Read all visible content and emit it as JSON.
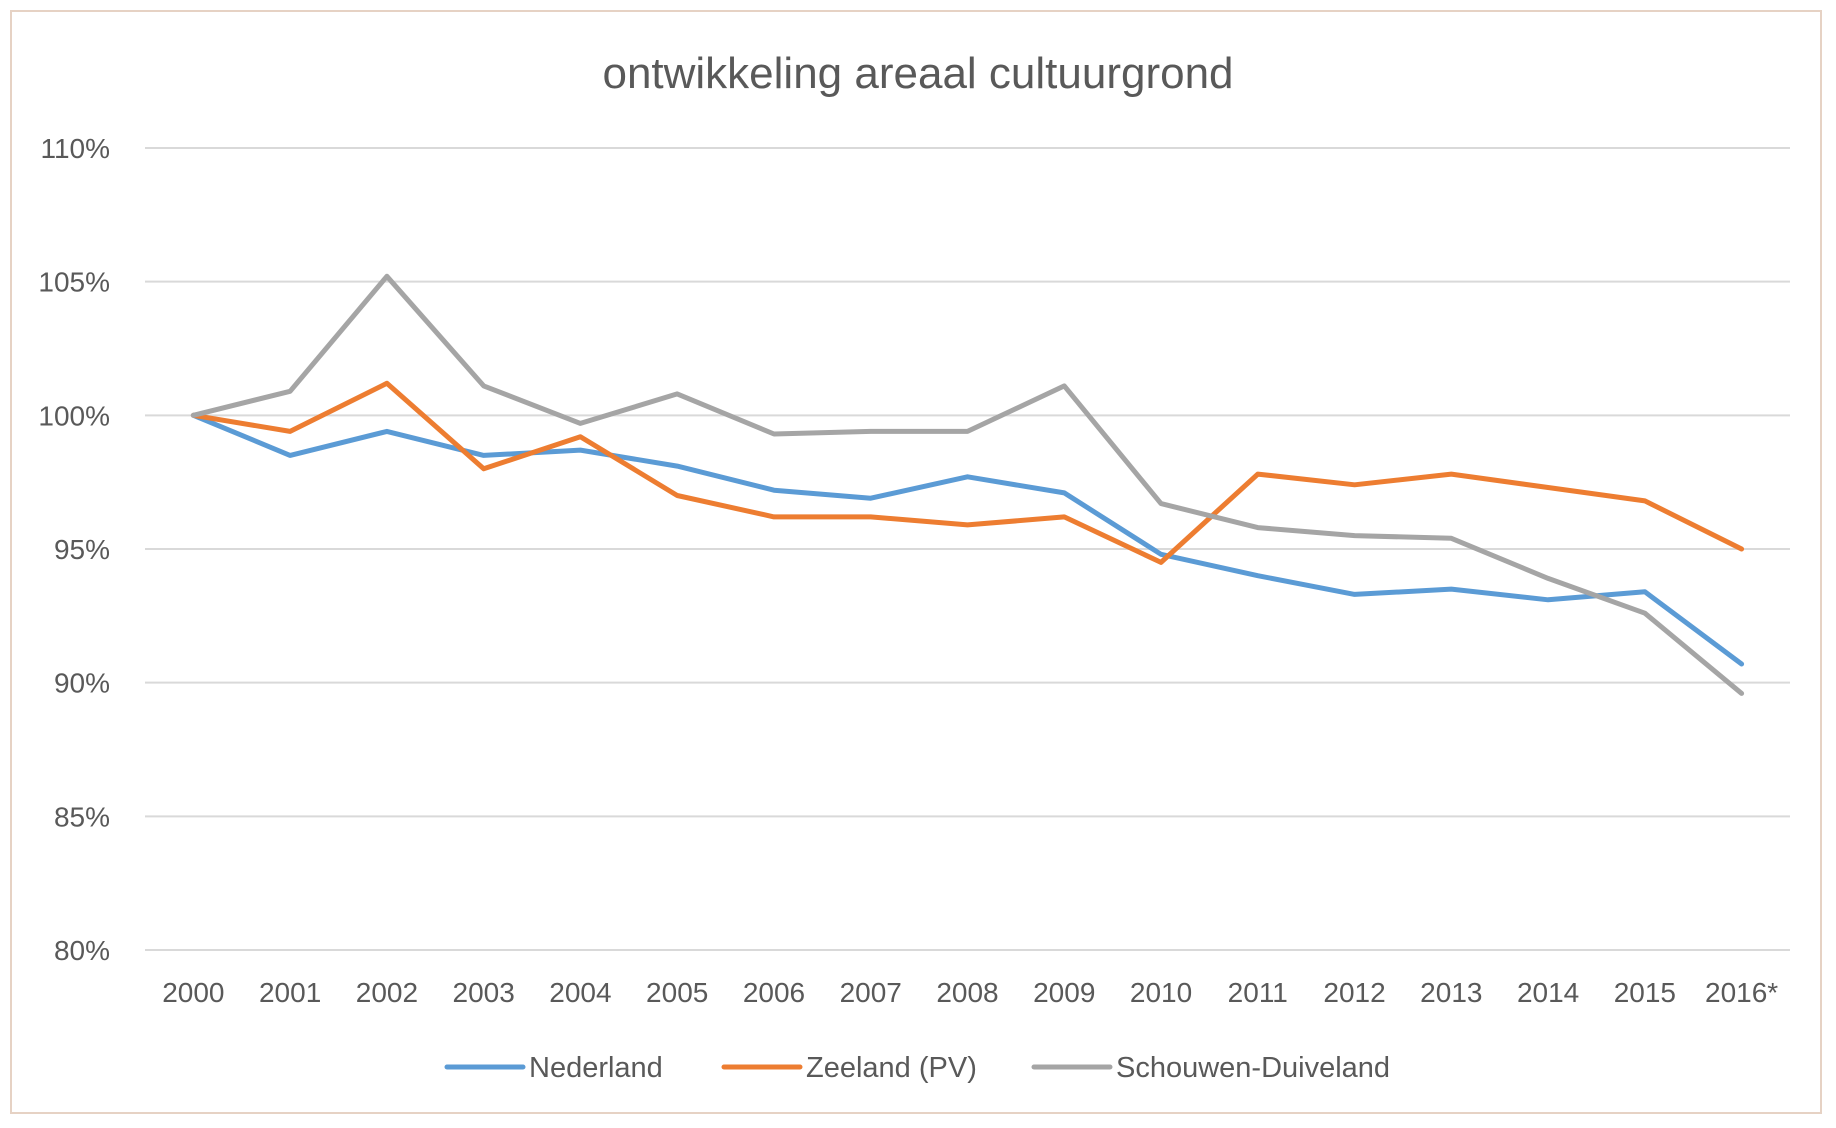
{
  "chart_data": {
    "type": "line",
    "title": "ontwikkeling  areaal cultuurgrond",
    "xlabel": "",
    "ylabel": "",
    "categories": [
      "2000",
      "2001",
      "2002",
      "2003",
      "2004",
      "2005",
      "2006",
      "2007",
      "2008",
      "2009",
      "2010",
      "2011",
      "2012",
      "2013",
      "2014",
      "2015",
      "2016*"
    ],
    "y_ticks": [
      "80%",
      "85%",
      "90%",
      "95%",
      "100%",
      "105%",
      "110%"
    ],
    "ylim": [
      80,
      110
    ],
    "grid": true,
    "legend_position": "bottom",
    "series": [
      {
        "name": "Nederland",
        "color": "#5b9bd5",
        "values": [
          100.0,
          98.5,
          99.4,
          98.5,
          98.7,
          98.1,
          97.2,
          96.9,
          97.7,
          97.1,
          94.8,
          94.0,
          93.3,
          93.5,
          93.1,
          93.4,
          90.7
        ]
      },
      {
        "name": "Zeeland (PV)",
        "color": "#ed7d31",
        "values": [
          100.0,
          99.4,
          101.2,
          98.0,
          99.2,
          97.0,
          96.2,
          96.2,
          95.9,
          96.2,
          94.5,
          97.8,
          97.4,
          97.8,
          97.3,
          96.8,
          95.0
        ]
      },
      {
        "name": "Schouwen-Duiveland",
        "color": "#a5a5a5",
        "values": [
          100.0,
          100.9,
          105.2,
          101.1,
          99.7,
          100.8,
          99.3,
          99.4,
          99.4,
          101.1,
          96.7,
          95.8,
          95.5,
          95.4,
          93.9,
          92.6,
          89.6
        ]
      }
    ]
  }
}
